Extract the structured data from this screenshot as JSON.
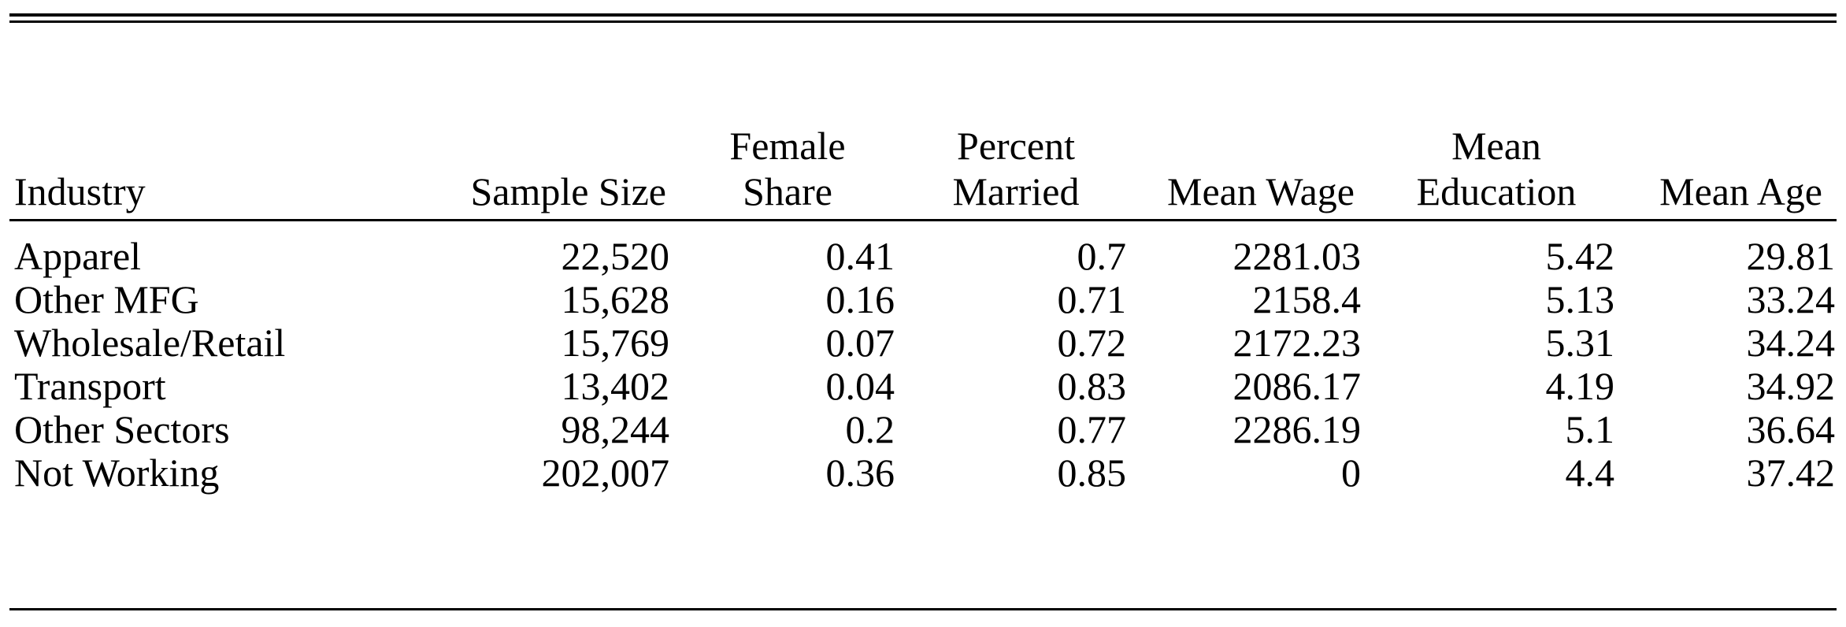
{
  "table": {
    "headers": [
      {
        "line1": "",
        "line2": "Industry"
      },
      {
        "line1": "",
        "line2": "Sample Size"
      },
      {
        "line1": "Female",
        "line2": "Share"
      },
      {
        "line1": "Percent",
        "line2": "Married"
      },
      {
        "line1": "",
        "line2": "Mean Wage"
      },
      {
        "line1": "Mean",
        "line2": "Education"
      },
      {
        "line1": "",
        "line2": "Mean Age"
      }
    ],
    "rows": [
      [
        "Apparel",
        "22,520",
        "0.41",
        "0.7",
        "2281.03",
        "5.42",
        "29.81"
      ],
      [
        "Other MFG",
        "15,628",
        "0.16",
        "0.71",
        "2158.4",
        "5.13",
        "33.24"
      ],
      [
        "Wholesale/Retail",
        "15,769",
        "0.07",
        "0.72",
        "2172.23",
        "5.31",
        "34.24"
      ],
      [
        "Transport",
        "13,402",
        "0.04",
        "0.83",
        "2086.17",
        "4.19",
        "34.92"
      ],
      [
        "Other Sectors",
        "98,244",
        "0.2",
        "0.77",
        "2286.19",
        "5.1",
        "36.64"
      ],
      [
        "Not Working",
        "202,007",
        "0.36",
        "0.85",
        "0",
        "4.4",
        "37.42"
      ]
    ]
  }
}
